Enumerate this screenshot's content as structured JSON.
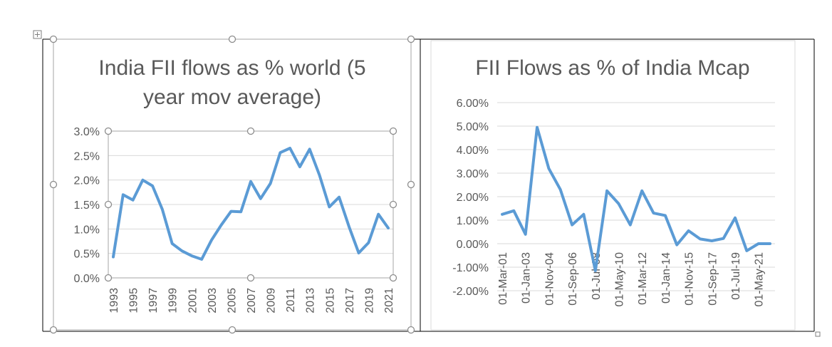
{
  "chart_data": [
    {
      "type": "line",
      "title_lines": [
        "India FII flows as % world (5",
        "year mov average)"
      ],
      "xlabel": "",
      "ylabel": "",
      "ylim": [
        0,
        0.03
      ],
      "y_ticks": [
        "0.0%",
        "0.5%",
        "1.0%",
        "1.5%",
        "2.0%",
        "2.5%",
        "3.0%"
      ],
      "x_tick_labels": [
        "1993",
        "1995",
        "1997",
        "1999",
        "2001",
        "2003",
        "2005",
        "2007",
        "2009",
        "2011",
        "2013",
        "2015",
        "2017",
        "2019",
        "2021"
      ],
      "x": [
        1993,
        1994,
        1995,
        1996,
        1997,
        1998,
        1999,
        2000,
        2001,
        2002,
        2003,
        2004,
        2005,
        2006,
        2007,
        2008,
        2009,
        2010,
        2011,
        2012,
        2013,
        2014,
        2015,
        2016,
        2017,
        2018,
        2019,
        2020,
        2021
      ],
      "series": [
        {
          "color": "#5b9bd5",
          "values": [
            0.0043,
            0.017,
            0.0159,
            0.02,
            0.0188,
            0.014,
            0.007,
            0.0055,
            0.0045,
            0.0038,
            0.0077,
            0.0108,
            0.0136,
            0.0135,
            0.0197,
            0.0162,
            0.0193,
            0.0256,
            0.0265,
            0.0227,
            0.0263,
            0.021,
            0.0145,
            0.0165,
            0.0105,
            0.0051,
            0.0072,
            0.013,
            0.0102
          ]
        }
      ],
      "grid": true,
      "legend": "none"
    },
    {
      "type": "line",
      "title_lines": [
        "FII Flows as % of India Mcap"
      ],
      "xlabel": "",
      "ylabel": "",
      "ylim": [
        -0.02,
        0.06
      ],
      "y_ticks": [
        "-2.00%",
        "-1.00%",
        "0.00%",
        "1.00%",
        "2.00%",
        "3.00%",
        "4.00%",
        "5.00%",
        "6.00%"
      ],
      "x_tick_labels": [
        "01-Mar-01",
        "01-Jan-03",
        "01-Nov-04",
        "01-Sep-06",
        "01-Jul-08",
        "01-May-10",
        "01-Mar-12",
        "01-Jan-14",
        "01-Nov-15",
        "01-Sep-17",
        "01-Jul-19",
        "01-May-21"
      ],
      "x": [
        "2001-03",
        "2002-02",
        "2003-01",
        "2003-12",
        "2004-11",
        "2005-10",
        "2006-09",
        "2007-08",
        "2008-07",
        "2009-06",
        "2010-05",
        "2011-04",
        "2012-03",
        "2013-02",
        "2014-01",
        "2014-12",
        "2015-11",
        "2016-10",
        "2017-09",
        "2018-08",
        "2019-07",
        "2020-06",
        "2021-05",
        "2022-04"
      ],
      "series": [
        {
          "color": "#5b9bd5",
          "values": [
            0.0125,
            0.014,
            0.004,
            0.0495,
            0.032,
            0.023,
            0.008,
            0.0125,
            -0.0115,
            0.0225,
            0.017,
            0.008,
            0.0225,
            0.013,
            0.012,
            -0.0005,
            0.0055,
            0.002,
            0.0012,
            0.0022,
            0.011,
            -0.003,
            0.0,
            0.0
          ]
        }
      ],
      "grid": true,
      "legend": "none"
    }
  ]
}
